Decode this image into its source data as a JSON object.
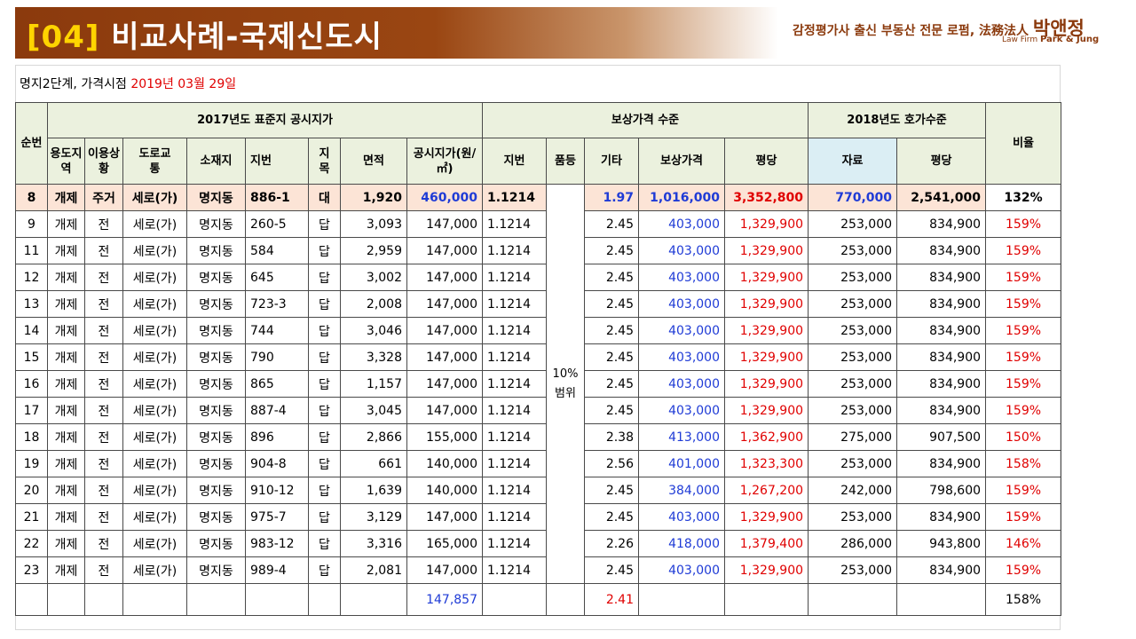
{
  "header": {
    "title_num": "[04]",
    "title_text": "비교사례-국제신도시",
    "logo_line": "감정평가사 출신 부동산 전문 로펌, 法務法人",
    "logo_name": "박앤정",
    "logo_sub_prefix": "Law Firm",
    "logo_sub_bold": "Park & Jung"
  },
  "subtitle": {
    "prefix": "명지2단계, 가격시점",
    "date": "2019년 03월 29일"
  },
  "table": {
    "group_headers": {
      "seq": "순번",
      "standard": "2017년도 표준지 공시지가",
      "comp": "보상가격 수준",
      "ask": "2018년도 호가수준",
      "ratio": "비율"
    },
    "headers": {
      "zone": "용도지역",
      "use": "이용상황",
      "road": "도로교통",
      "location": "소재지",
      "lot": "지번",
      "landcat": "지목",
      "area": "면적",
      "price": "공시지가(원/㎡)",
      "comp_lot": "지번",
      "grade": "품등",
      "etc": "기타",
      "comp_price": "보상가격",
      "per_pyeong": "평당",
      "data": "자료",
      "ask_pyeong": "평당"
    },
    "grade_merged": "10%범위",
    "rows": [
      {
        "seq": "8",
        "zone": "개제",
        "use": "주거",
        "road": "세로(가)",
        "location": "명지동",
        "lot": "886-1",
        "landcat": "대",
        "area": "1,920",
        "price": "460,000",
        "comp_lot": "1.1214",
        "etc": "1.97",
        "comp_price": "1,016,000",
        "per_pyeong": "3,352,800",
        "data": "770,000",
        "ask_pyeong": "2,541,000",
        "ratio": "132%"
      },
      {
        "seq": "9",
        "zone": "개제",
        "use": "전",
        "road": "세로(가)",
        "location": "명지동",
        "lot": "260-5",
        "landcat": "답",
        "area": "3,093",
        "price": "147,000",
        "comp_lot": "1.1214",
        "etc": "2.45",
        "comp_price": "403,000",
        "per_pyeong": "1,329,900",
        "data": "253,000",
        "ask_pyeong": "834,900",
        "ratio": "159%"
      },
      {
        "seq": "11",
        "zone": "개제",
        "use": "전",
        "road": "세로(가)",
        "location": "명지동",
        "lot": "584",
        "landcat": "답",
        "area": "2,959",
        "price": "147,000",
        "comp_lot": "1.1214",
        "etc": "2.45",
        "comp_price": "403,000",
        "per_pyeong": "1,329,900",
        "data": "253,000",
        "ask_pyeong": "834,900",
        "ratio": "159%"
      },
      {
        "seq": "12",
        "zone": "개제",
        "use": "전",
        "road": "세로(가)",
        "location": "명지동",
        "lot": "645",
        "landcat": "답",
        "area": "3,002",
        "price": "147,000",
        "comp_lot": "1.1214",
        "etc": "2.45",
        "comp_price": "403,000",
        "per_pyeong": "1,329,900",
        "data": "253,000",
        "ask_pyeong": "834,900",
        "ratio": "159%"
      },
      {
        "seq": "13",
        "zone": "개제",
        "use": "전",
        "road": "세로(가)",
        "location": "명지동",
        "lot": "723-3",
        "landcat": "답",
        "area": "2,008",
        "price": "147,000",
        "comp_lot": "1.1214",
        "etc": "2.45",
        "comp_price": "403,000",
        "per_pyeong": "1,329,900",
        "data": "253,000",
        "ask_pyeong": "834,900",
        "ratio": "159%"
      },
      {
        "seq": "14",
        "zone": "개제",
        "use": "전",
        "road": "세로(가)",
        "location": "명지동",
        "lot": "744",
        "landcat": "답",
        "area": "3,046",
        "price": "147,000",
        "comp_lot": "1.1214",
        "etc": "2.45",
        "comp_price": "403,000",
        "per_pyeong": "1,329,900",
        "data": "253,000",
        "ask_pyeong": "834,900",
        "ratio": "159%"
      },
      {
        "seq": "15",
        "zone": "개제",
        "use": "전",
        "road": "세로(가)",
        "location": "명지동",
        "lot": "790",
        "landcat": "답",
        "area": "3,328",
        "price": "147,000",
        "comp_lot": "1.1214",
        "etc": "2.45",
        "comp_price": "403,000",
        "per_pyeong": "1,329,900",
        "data": "253,000",
        "ask_pyeong": "834,900",
        "ratio": "159%"
      },
      {
        "seq": "16",
        "zone": "개제",
        "use": "전",
        "road": "세로(가)",
        "location": "명지동",
        "lot": "865",
        "landcat": "답",
        "area": "1,157",
        "price": "147,000",
        "comp_lot": "1.1214",
        "etc": "2.45",
        "comp_price": "403,000",
        "per_pyeong": "1,329,900",
        "data": "253,000",
        "ask_pyeong": "834,900",
        "ratio": "159%"
      },
      {
        "seq": "17",
        "zone": "개제",
        "use": "전",
        "road": "세로(가)",
        "location": "명지동",
        "lot": "887-4",
        "landcat": "답",
        "area": "3,045",
        "price": "147,000",
        "comp_lot": "1.1214",
        "etc": "2.45",
        "comp_price": "403,000",
        "per_pyeong": "1,329,900",
        "data": "253,000",
        "ask_pyeong": "834,900",
        "ratio": "159%"
      },
      {
        "seq": "18",
        "zone": "개제",
        "use": "전",
        "road": "세로(가)",
        "location": "명지동",
        "lot": "896",
        "landcat": "답",
        "area": "2,866",
        "price": "155,000",
        "comp_lot": "1.1214",
        "etc": "2.38",
        "comp_price": "413,000",
        "per_pyeong": "1,362,900",
        "data": "275,000",
        "ask_pyeong": "907,500",
        "ratio": "150%"
      },
      {
        "seq": "19",
        "zone": "개제",
        "use": "전",
        "road": "세로(가)",
        "location": "명지동",
        "lot": "904-8",
        "landcat": "답",
        "area": "661",
        "price": "140,000",
        "comp_lot": "1.1214",
        "etc": "2.56",
        "comp_price": "401,000",
        "per_pyeong": "1,323,300",
        "data": "253,000",
        "ask_pyeong": "834,900",
        "ratio": "158%"
      },
      {
        "seq": "20",
        "zone": "개제",
        "use": "전",
        "road": "세로(가)",
        "location": "명지동",
        "lot": "910-12",
        "landcat": "답",
        "area": "1,639",
        "price": "140,000",
        "comp_lot": "1.1214",
        "etc": "2.45",
        "comp_price": "384,000",
        "per_pyeong": "1,267,200",
        "data": "242,000",
        "ask_pyeong": "798,600",
        "ratio": "159%"
      },
      {
        "seq": "21",
        "zone": "개제",
        "use": "전",
        "road": "세로(가)",
        "location": "명지동",
        "lot": "975-7",
        "landcat": "답",
        "area": "3,129",
        "price": "147,000",
        "comp_lot": "1.1214",
        "etc": "2.45",
        "comp_price": "403,000",
        "per_pyeong": "1,329,900",
        "data": "253,000",
        "ask_pyeong": "834,900",
        "ratio": "159%"
      },
      {
        "seq": "22",
        "zone": "개제",
        "use": "전",
        "road": "세로(가)",
        "location": "명지동",
        "lot": "983-12",
        "landcat": "답",
        "area": "3,316",
        "price": "165,000",
        "comp_lot": "1.1214",
        "etc": "2.26",
        "comp_price": "418,000",
        "per_pyeong": "1,379,400",
        "data": "286,000",
        "ask_pyeong": "943,800",
        "ratio": "146%"
      },
      {
        "seq": "23",
        "zone": "개제",
        "use": "전",
        "road": "세로(가)",
        "location": "명지동",
        "lot": "989-4",
        "landcat": "답",
        "area": "2,081",
        "price": "147,000",
        "comp_lot": "1.1214",
        "etc": "2.45",
        "comp_price": "403,000",
        "per_pyeong": "1,329,900",
        "data": "253,000",
        "ask_pyeong": "834,900",
        "ratio": "159%"
      }
    ],
    "footer": {
      "avg_price": "147,857",
      "avg_etc": "2.41",
      "avg_ratio": "158%"
    }
  }
}
